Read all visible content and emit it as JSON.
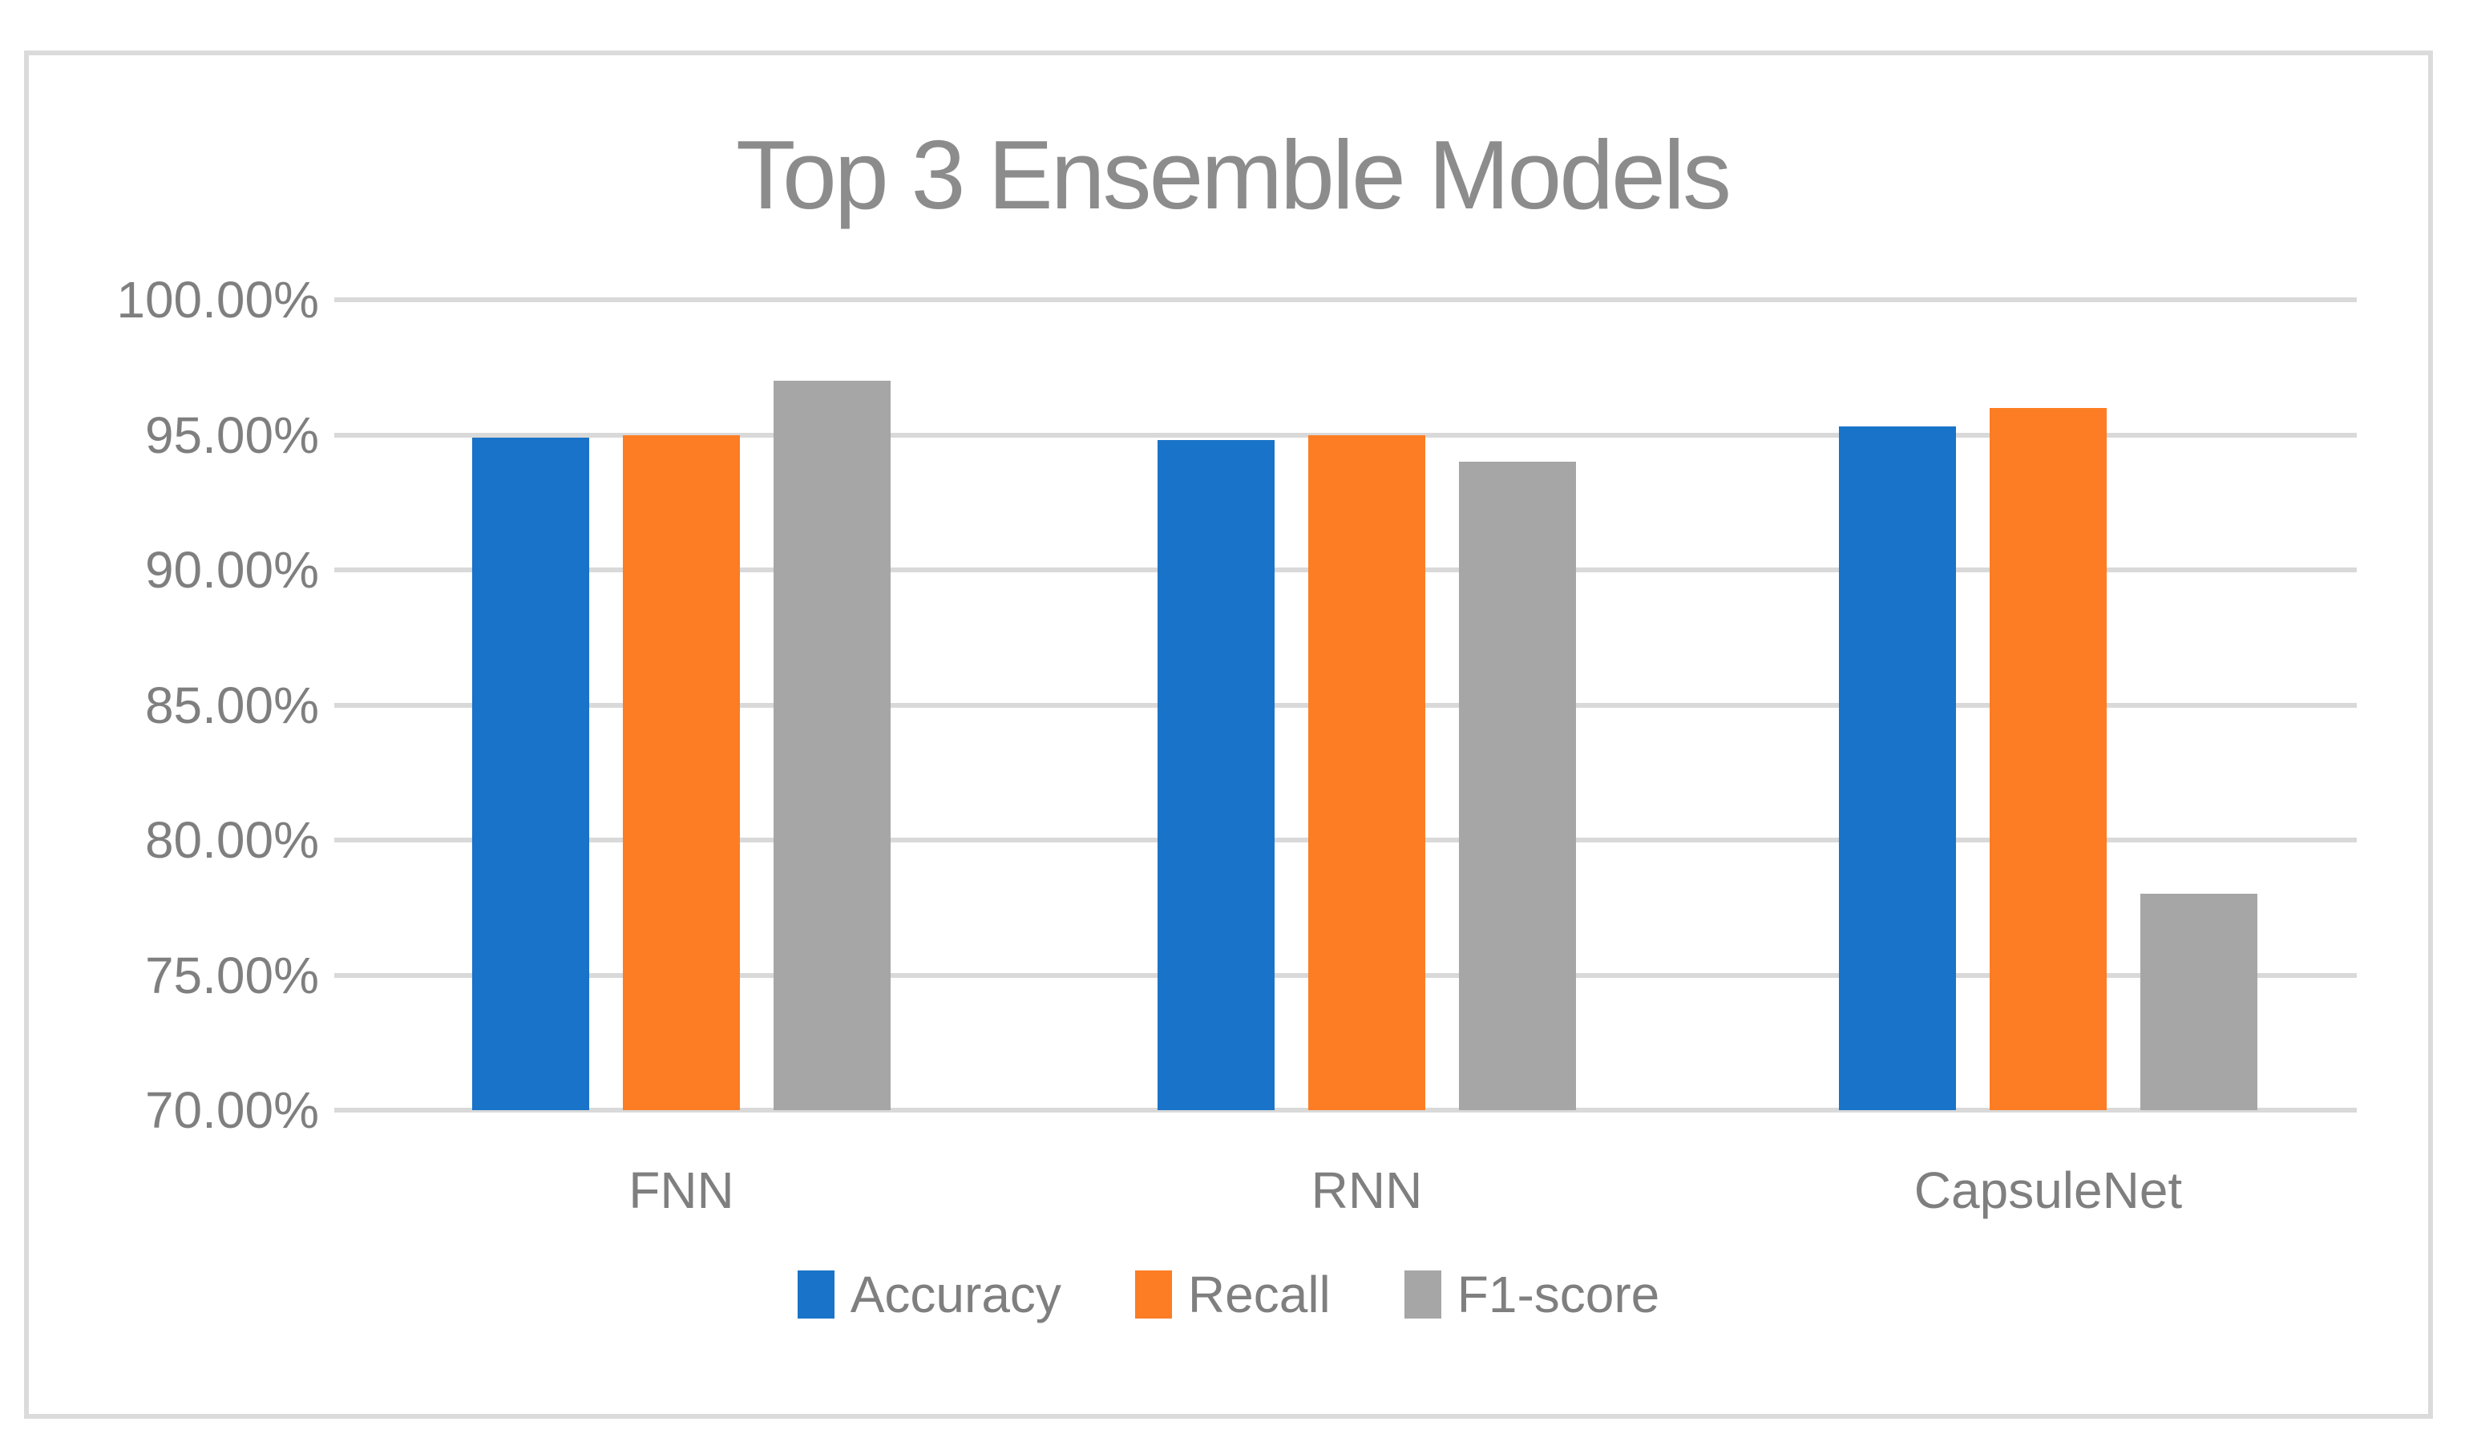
{
  "figure": {
    "title": "Top 3 Ensemble Models"
  },
  "chart_data": {
    "type": "bar",
    "title": "Top 3 Ensemble Models",
    "categories": [
      "FNN",
      "RNN",
      "CapsuleNet"
    ],
    "series": [
      {
        "name": "Accuracy",
        "color": "#1973c8",
        "values": [
          94.9,
          94.8,
          95.3
        ]
      },
      {
        "name": "Recall",
        "color": "#fc7d23",
        "values": [
          95.0,
          95.0,
          96.0
        ]
      },
      {
        "name": "F1-score",
        "color": "#a6a6a6",
        "values": [
          97.0,
          94.0,
          78.0
        ]
      }
    ],
    "xlabel": "",
    "ylabel": "",
    "ylim": [
      70,
      100
    ],
    "y_ticks": [
      {
        "value": 100,
        "label": "100.00%"
      },
      {
        "value": 95,
        "label": "95.00%"
      },
      {
        "value": 90,
        "label": "90.00%"
      },
      {
        "value": 85,
        "label": "85.00%"
      },
      {
        "value": 80,
        "label": "80.00%"
      },
      {
        "value": 75,
        "label": "75.00%"
      },
      {
        "value": 70,
        "label": "70.00%"
      }
    ],
    "grid": true,
    "legend_position": "bottom",
    "colors": {
      "gridline": "#d9d9d9",
      "frame_border": "#dbdbdb",
      "title_text": "#8c8c8c",
      "axis_text": "#7f7f7f",
      "background": "#ffffff"
    }
  }
}
